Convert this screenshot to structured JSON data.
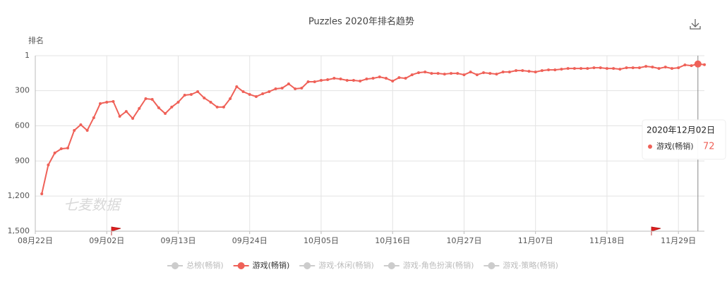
{
  "chart_data": {
    "type": "line",
    "title": "Puzzles 2020年排名趋势",
    "y_label": "排名",
    "watermark": "七麦数据",
    "categories": [
      "08月22日",
      null,
      null,
      null,
      null,
      null,
      null,
      null,
      null,
      null,
      null,
      "09月02日",
      null,
      null,
      null,
      null,
      null,
      null,
      null,
      null,
      null,
      null,
      "09月13日",
      null,
      null,
      null,
      null,
      null,
      null,
      null,
      null,
      null,
      null,
      "09月24日",
      null,
      null,
      null,
      null,
      null,
      null,
      null,
      null,
      null,
      null,
      "10月05日",
      null,
      null,
      null,
      null,
      null,
      null,
      null,
      null,
      null,
      null,
      "10月16日",
      null,
      null,
      null,
      null,
      null,
      null,
      null,
      null,
      null,
      null,
      "10月27日",
      null,
      null,
      null,
      null,
      null,
      null,
      null,
      null,
      null,
      null,
      "11月07日",
      null,
      null,
      null,
      null,
      null,
      null,
      null,
      null,
      null,
      null,
      "11月18日",
      null,
      null,
      null,
      null,
      null,
      null,
      null,
      null,
      null,
      null,
      "11月29日",
      null,
      null,
      null,
      null
    ],
    "series": [
      {
        "name": "总榜(畅销)",
        "color": "#cccccc",
        "visible": false
      },
      {
        "name": "游戏(畅销)",
        "color": "#ef6158",
        "visible": true,
        "values": [
          null,
          1181,
          934,
          832,
          796,
          790,
          639,
          591,
          639,
          531,
          410,
          398,
          392,
          519,
          477,
          537,
          452,
          368,
          374,
          446,
          495,
          440,
          398,
          338,
          332,
          308,
          362,
          398,
          440,
          440,
          368,
          266,
          308,
          332,
          350,
          326,
          308,
          284,
          278,
          242,
          284,
          278,
          224,
          224,
          212,
          206,
          194,
          200,
          212,
          212,
          218,
          200,
          194,
          182,
          194,
          218,
          188,
          194,
          164,
          146,
          140,
          152,
          152,
          158,
          152,
          152,
          164,
          140,
          164,
          146,
          152,
          158,
          140,
          140,
          128,
          128,
          134,
          140,
          128,
          122,
          122,
          116,
          110,
          110,
          110,
          110,
          104,
          104,
          110,
          110,
          116,
          104,
          104,
          104,
          92,
          98,
          110,
          98,
          110,
          104,
          80,
          86,
          72,
          78
        ]
      },
      {
        "name": "游戏-休闲(畅销)",
        "color": "#cccccc",
        "visible": false
      },
      {
        "name": "游戏-角色扮演(畅销)",
        "color": "#cccccc",
        "visible": false
      },
      {
        "name": "游戏-策略(畅销)",
        "color": "#cccccc",
        "visible": false
      }
    ],
    "ylim": [
      1,
      1500
    ],
    "y_inverted": true,
    "yticks": [
      1,
      300,
      600,
      900,
      {
        "value": 1200,
        "label": "1,200"
      },
      {
        "value": 1500,
        "label": "1,500"
      }
    ],
    "grid": true,
    "tooltip": {
      "title": "2020年12月02日",
      "series_index": 1,
      "index": 102
    }
  }
}
